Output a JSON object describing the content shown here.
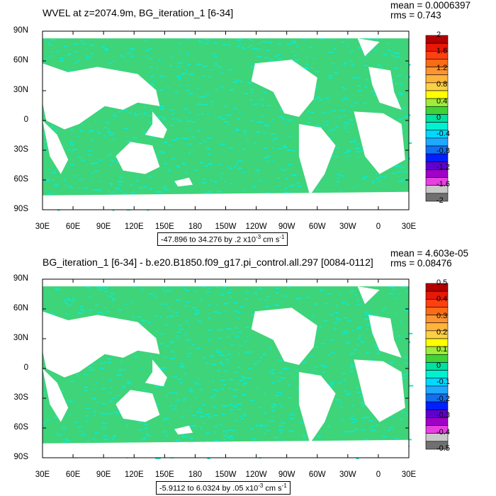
{
  "panels": [
    {
      "title": "WVEL at z=2074.9m, BG_iteration_1 [6-34]",
      "stats": {
        "mean": "mean = 0.0006397",
        "rms": "rms = 0.743"
      },
      "range_text": "-47.896 to 34.276 by .2 x10",
      "range_exp": "-3",
      "range_units": " cm s",
      "range_units_exp": "-1",
      "colorbar": {
        "labels": [
          "2",
          "1.6",
          "1.2",
          "0.8",
          "0.4",
          "0",
          "-0.4",
          "-0.8",
          "-1.2",
          "-1.6",
          "-2"
        ],
        "colors": [
          "#b40000",
          "#e81808",
          "#ff4010",
          "#f86c18",
          "#fc9432",
          "#fcb43c",
          "#fcd046",
          "#ffff00",
          "#a0ec3c",
          "#40d238",
          "#00e0a0",
          "#00f0d0",
          "#00d8ff",
          "#20a8ff",
          "#1070f0",
          "#0020ff",
          "#6000d0",
          "#a000c8",
          "#e840e0",
          "#c8c8c8",
          "#707070"
        ]
      }
    },
    {
      "title": "BG_iteration_1 [6-34] - b.e20.B1850.f09_g17.pi_control.all.297 [0084-0112]",
      "stats": {
        "mean": "mean = 4.603e-05",
        "rms": "rms = 0.08476"
      },
      "range_text": "-5.9112 to 6.0324 by .05 x10",
      "range_exp": "-3",
      "range_units": " cm s",
      "range_units_exp": "-1",
      "colorbar": {
        "labels": [
          "0.5",
          "0.4",
          "0.3",
          "0.2",
          "0.1",
          "0",
          "-0.1",
          "-0.2",
          "-0.3",
          "-0.4",
          "-0.5"
        ],
        "colors": [
          "#b40000",
          "#e81808",
          "#ff4010",
          "#f86c18",
          "#fc9432",
          "#fcb43c",
          "#fcd046",
          "#ffff00",
          "#a0ec3c",
          "#40d238",
          "#00e0a0",
          "#00f0d0",
          "#00d8ff",
          "#20a8ff",
          "#1070f0",
          "#0020ff",
          "#6000d0",
          "#a000c8",
          "#e840e0",
          "#c8c8c8",
          "#707070"
        ]
      }
    }
  ],
  "axes": {
    "lat_labels": [
      "90N",
      "60N",
      "30N",
      "0",
      "30S",
      "60S",
      "90S"
    ],
    "lon_labels": [
      "30E",
      "60E",
      "90E",
      "120E",
      "150E",
      "180",
      "150W",
      "120W",
      "90W",
      "60W",
      "30W",
      "0",
      "30E"
    ]
  },
  "colors": {
    "ocean": "#3ed47a",
    "ocean_alt": "#10e8c8",
    "land": "#ffffff"
  }
}
